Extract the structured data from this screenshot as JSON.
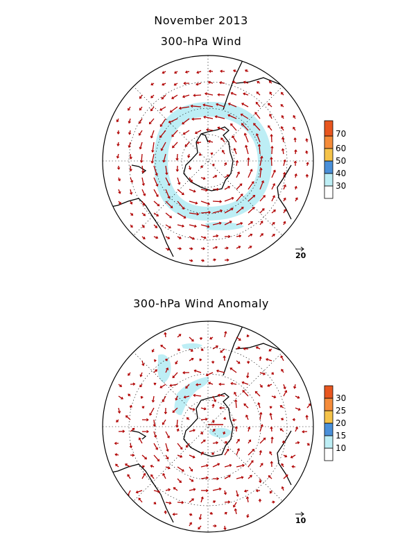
{
  "header": {
    "title": "November 2013"
  },
  "panels": [
    {
      "title": "300-hPa Wind",
      "colorbar": {
        "labels": [
          "30",
          "40",
          "50",
          "60",
          "70"
        ],
        "colors": [
          "#ffffff",
          "#bdeef5",
          "#4a90d9",
          "#f5c34a",
          "#f58c3a",
          "#e8561f"
        ]
      },
      "reference_vector": "20",
      "shading_color": "#bdeef5"
    },
    {
      "title": "300-hPa Wind Anomaly",
      "colorbar": {
        "labels": [
          "10",
          "15",
          "20",
          "25",
          "30"
        ],
        "colors": [
          "#ffffff",
          "#bdeef5",
          "#4a90d9",
          "#f5c34a",
          "#f58c3a",
          "#e8561f"
        ]
      },
      "reference_vector": "10",
      "shading_color": "#bdeef5"
    }
  ],
  "colors": {
    "vector": "#b00000",
    "coast": "#000000",
    "grid": "#000000"
  }
}
